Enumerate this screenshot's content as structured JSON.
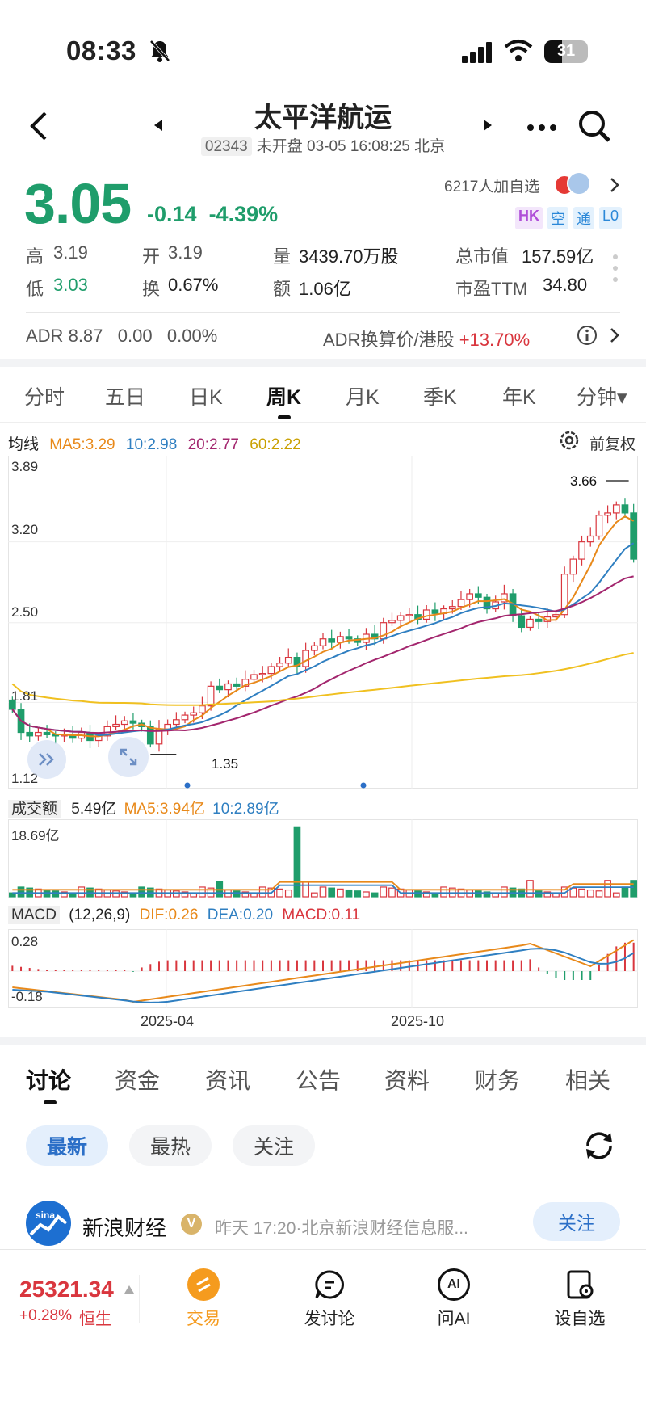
{
  "status": {
    "time": "08:33",
    "battery": "31"
  },
  "header": {
    "title": "太平洋航运",
    "code": "02343",
    "status_text": "未开盘 03-05 16:08:25 北京"
  },
  "quote": {
    "price": "3.05",
    "change": "-0.14",
    "change_pct": "-4.39%",
    "followers": "6217人加自选",
    "badges": [
      "HK",
      "空",
      "通",
      "L0"
    ],
    "high_label": "高",
    "high": "3.19",
    "open_label": "开",
    "open": "3.19",
    "volume_label": "量",
    "volume": "3439.70万股",
    "mcap_label": "总市值",
    "mcap": "157.59亿",
    "low_label": "低",
    "low": "3.03",
    "turnover_label": "换",
    "turnover": "0.67%",
    "amount_label": "额",
    "amount": "1.06亿",
    "pe_label": "市盈TTM",
    "pe": "34.80"
  },
  "adr": {
    "label": "ADR",
    "price": "8.87",
    "change": "0.00",
    "pct": "0.00%",
    "conv_label": "ADR换算价/港股",
    "conv_value": "+13.70%"
  },
  "tabs": [
    "分时",
    "五日",
    "日K",
    "周K",
    "月K",
    "季K",
    "年K",
    "分钟▾"
  ],
  "ma_legend": {
    "label": "均线",
    "ma5": "MA5:3.29",
    "ma10": "10:2.98",
    "ma20": "20:2.77",
    "ma60": "60:2.22",
    "adjust": "前复权"
  },
  "chart_data": [
    {
      "type": "candlestick",
      "ylim": [
        1.12,
        3.89
      ],
      "y_ticks": [
        "3.89",
        "3.20",
        "2.50",
        "1.81",
        "1.12"
      ],
      "annotations": [
        {
          "text": "3.66"
        },
        {
          "text": "1.35"
        }
      ],
      "x_labels": [
        "2025-04",
        "2025-10"
      ],
      "close": [
        1.75,
        1.55,
        1.52,
        1.55,
        1.53,
        1.52,
        1.53,
        1.5,
        1.55,
        1.48,
        1.52,
        1.6,
        1.62,
        1.65,
        1.63,
        1.6,
        1.45,
        1.58,
        1.62,
        1.66,
        1.7,
        1.72,
        1.78,
        1.95,
        1.92,
        1.97,
        1.95,
        2.01,
        2.05,
        2.06,
        2.12,
        2.15,
        2.2,
        2.12,
        2.26,
        2.3,
        2.36,
        2.33,
        2.38,
        2.36,
        2.33,
        2.4,
        2.36,
        2.5,
        2.52,
        2.56,
        2.57,
        2.53,
        2.61,
        2.58,
        2.62,
        2.64,
        2.7,
        2.75,
        2.72,
        2.62,
        2.68,
        2.75,
        2.56,
        2.46,
        2.53,
        2.51,
        2.55,
        2.57,
        2.92,
        3.05,
        3.2,
        3.25,
        3.43,
        3.45,
        3.52,
        3.45,
        3.05
      ],
      "ma_series": [
        {
          "name": "MA5",
          "color": "#e8891a"
        },
        {
          "name": "10",
          "color": "#2f7fc1"
        },
        {
          "name": "20",
          "color": "#a3266e"
        },
        {
          "name": "60",
          "color": "#f0c020"
        }
      ]
    },
    {
      "type": "bar",
      "title": "成交额",
      "value": "5.49亿",
      "ma5": "MA5:3.94亿",
      "ma10": "10:2.89亿",
      "ylim": [
        0,
        18.69
      ],
      "y_ticks": [
        "18.69亿"
      ]
    },
    {
      "type": "macd",
      "title": "MACD",
      "params": "(12,26,9)",
      "dif": "DIF:0.26",
      "dea": "DEA:0.20",
      "macd": "MACD:0.11",
      "y_ticks": [
        "0.28",
        "-0.18"
      ]
    }
  ],
  "discuss_tabs": [
    "讨论",
    "资金",
    "资讯",
    "公告",
    "资料",
    "财务",
    "相关"
  ],
  "filters": [
    "最新",
    "最热",
    "关注"
  ],
  "post": {
    "author": "新浪财经",
    "meta": "昨天 17:20·北京新浪财经信息服...",
    "follow": "关注"
  },
  "bottom": {
    "index_value": "25321.34",
    "index_change": "+0.28%",
    "index_name": "恒生",
    "nav": [
      "交易",
      "发讨论",
      "问AI",
      "设自选"
    ]
  }
}
